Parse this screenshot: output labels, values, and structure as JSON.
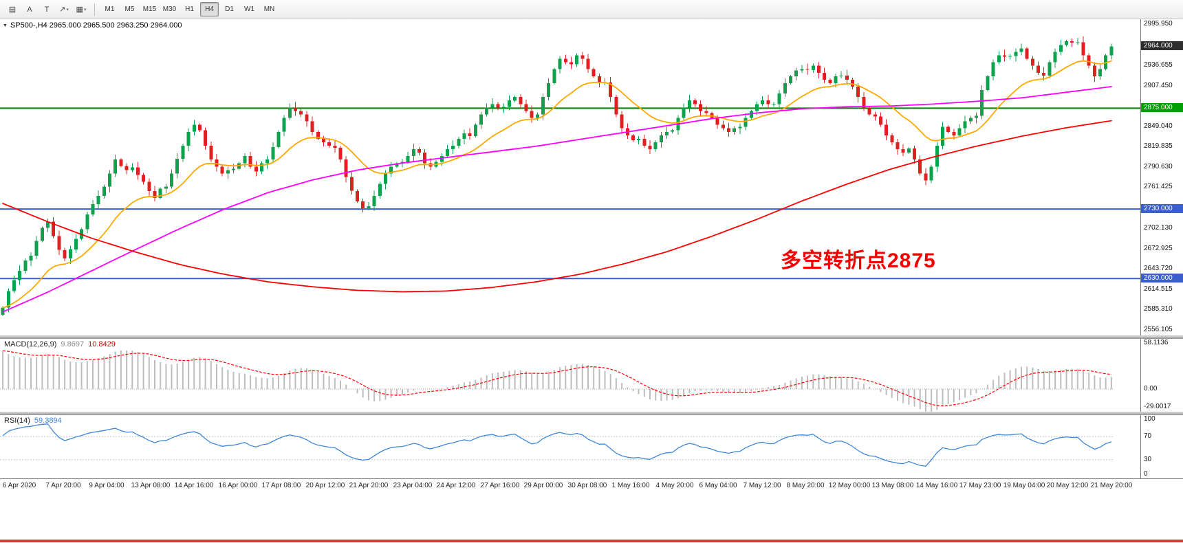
{
  "toolbar": {
    "tools": [
      {
        "name": "chart-objects-icon",
        "glyph": "▤",
        "caret": false
      },
      {
        "name": "text-label-icon",
        "glyph": "A",
        "caret": false
      },
      {
        "name": "text-frame-icon",
        "glyph": "T",
        "caret": false
      },
      {
        "name": "arrow-tool-icon",
        "glyph": "↗",
        "caret": true
      },
      {
        "name": "shapes-tool-icon",
        "glyph": "▦",
        "caret": true
      }
    ],
    "timeframes": [
      {
        "label": "M1",
        "active": false
      },
      {
        "label": "M5",
        "active": false
      },
      {
        "label": "M15",
        "active": false
      },
      {
        "label": "M30",
        "active": false
      },
      {
        "label": "H1",
        "active": false
      },
      {
        "label": "H4",
        "active": true
      },
      {
        "label": "D1",
        "active": false
      },
      {
        "label": "W1",
        "active": false
      },
      {
        "label": "MN",
        "active": false
      }
    ]
  },
  "chart": {
    "symbol_line": {
      "collapse_icon": "▼",
      "text": "SP500-,H4 2965.000 2965.500 2963.250 2964.000"
    },
    "annotation": {
      "text": "多空转折点2875",
      "color": "#FF0000"
    },
    "price_axis": {
      "ticks": [
        {
          "label": "2995.950",
          "value": 2995.95
        },
        {
          "label": "2936.655",
          "value": 2936.655
        },
        {
          "label": "2907.450",
          "value": 2907.45
        },
        {
          "label": "2849.040",
          "value": 2849.04
        },
        {
          "label": "2819.835",
          "value": 2819.835
        },
        {
          "label": "2790.630",
          "value": 2790.63
        },
        {
          "label": "2761.425",
          "value": 2761.425
        },
        {
          "label": "2702.130",
          "value": 2702.13
        },
        {
          "label": "2672.925",
          "value": 2672.925
        },
        {
          "label": "2643.720",
          "value": 2643.72
        },
        {
          "label": "2614.515",
          "value": 2614.515
        },
        {
          "label": "2585.310",
          "value": 2585.31
        },
        {
          "label": "2556.105",
          "value": 2556.105
        }
      ],
      "boxes": [
        {
          "label": "2964.000",
          "value": 2964.0,
          "bg": "#2e2e2e"
        },
        {
          "label": "2875.000",
          "value": 2875.0,
          "bg": "#00a000"
        },
        {
          "label": "2730.000",
          "value": 2730.0,
          "bg": "#3a5fcd"
        },
        {
          "label": "2630.000",
          "value": 2630.0,
          "bg": "#3a5fcd"
        }
      ]
    },
    "time_axis": [
      "6 Apr 2020",
      "7 Apr 20:00",
      "9 Apr 04:00",
      "13 Apr 08:00",
      "14 Apr 16:00",
      "16 Apr 00:00",
      "17 Apr 08:00",
      "20 Apr 12:00",
      "21 Apr 20:00",
      "23 Apr 04:00",
      "24 Apr 12:00",
      "27 Apr 16:00",
      "29 Apr 00:00",
      "30 Apr 08:00",
      "1 May 16:00",
      "4 May 20:00",
      "6 May 04:00",
      "7 May 12:00",
      "8 May 20:00",
      "12 May 00:00",
      "13 May 08:00",
      "14 May 16:00",
      "17 May 23:00",
      "19 May 04:00",
      "20 May 12:00",
      "21 May 20:00"
    ]
  },
  "chart_data": {
    "type": "candlestick",
    "symbol": "SP500-",
    "timeframe": "H4",
    "current_ohlc": {
      "open": 2965.0,
      "high": 2965.5,
      "low": 2963.25,
      "close": 2964.0
    },
    "price_scale": {
      "top": 2995.95,
      "bottom": 2556.105,
      "tick_step": 29.205
    },
    "up_color": "#0fa24e",
    "down_color": "#e02020",
    "first_open": 2578,
    "closes": [
      2588,
      2612,
      2628,
      2641,
      2656,
      2663,
      2684,
      2703,
      2712,
      2691,
      2671,
      2659,
      2672,
      2687,
      2701,
      2722,
      2737,
      2749,
      2762,
      2781,
      2801,
      2792,
      2786,
      2790,
      2779,
      2769,
      2756,
      2746,
      2759,
      2762,
      2781,
      2802,
      2821,
      2841,
      2851,
      2843,
      2821,
      2801,
      2791,
      2781,
      2786,
      2788,
      2796,
      2806,
      2791,
      2784,
      2796,
      2801,
      2819,
      2841,
      2861,
      2876,
      2871,
      2866,
      2856,
      2841,
      2831,
      2826,
      2821,
      2818,
      2801,
      2776,
      2756,
      2741,
      2731,
      2734,
      2749,
      2766,
      2781,
      2791,
      2796,
      2798,
      2806,
      2816,
      2811,
      2796,
      2791,
      2798,
      2806,
      2816,
      2821,
      2831,
      2839,
      2835,
      2851,
      2866,
      2876,
      2881,
      2876,
      2877,
      2886,
      2891,
      2881,
      2871,
      2861,
      2866,
      2891,
      2911,
      2931,
      2946,
      2941,
      2938,
      2951,
      2946,
      2931,
      2921,
      2911,
      2912,
      2891,
      2866,
      2846,
      2836,
      2829,
      2831,
      2821,
      2816,
      2826,
      2836,
      2841,
      2843,
      2861,
      2876,
      2886,
      2881,
      2871,
      2868,
      2861,
      2851,
      2846,
      2841,
      2846,
      2848,
      2861,
      2871,
      2881,
      2886,
      2881,
      2881,
      2896,
      2911,
      2921,
      2929,
      2931,
      2930,
      2936,
      2926,
      2916,
      2911,
      2921,
      2922,
      2916,
      2906,
      2891,
      2876,
      2866,
      2863,
      2851,
      2836,
      2826,
      2816,
      2811,
      2817,
      2801,
      2781,
      2771,
      2791,
      2821,
      2848,
      2841,
      2836,
      2846,
      2856,
      2861,
      2864,
      2901,
      2921,
      2941,
      2951,
      2949,
      2950,
      2956,
      2961,
      2946,
      2936,
      2926,
      2922,
      2941,
      2956,
      2966,
      2971,
      2969,
      2970,
      2951,
      2936,
      2921,
      2931,
      2951,
      2964
    ],
    "hlines": [
      {
        "price": 2875.0,
        "color": "#008000",
        "label": "2875.000"
      },
      {
        "price": 2730.0,
        "color": "#3a5fcd",
        "label": "2730.000"
      },
      {
        "price": 2630.0,
        "color": "#3a5fcd",
        "label": "2630.000"
      }
    ],
    "moving_averages": [
      {
        "name": "ma-fast",
        "color": "#ffa800",
        "type": "ema",
        "period": 16
      },
      {
        "name": "ma-mid",
        "color": "#ff00ff",
        "type": "waypoints",
        "points": [
          [
            0,
            2582
          ],
          [
            0.04,
            2610
          ],
          [
            0.08,
            2641
          ],
          [
            0.12,
            2672
          ],
          [
            0.16,
            2702
          ],
          [
            0.2,
            2730
          ],
          [
            0.24,
            2754
          ],
          [
            0.28,
            2772
          ],
          [
            0.32,
            2786
          ],
          [
            0.36,
            2796
          ],
          [
            0.4,
            2804
          ],
          [
            0.44,
            2812
          ],
          [
            0.48,
            2820
          ],
          [
            0.52,
            2830
          ],
          [
            0.56,
            2840
          ],
          [
            0.6,
            2850
          ],
          [
            0.64,
            2860
          ],
          [
            0.68,
            2868
          ],
          [
            0.72,
            2874
          ],
          [
            0.76,
            2877
          ],
          [
            0.8,
            2878
          ],
          [
            0.84,
            2881
          ],
          [
            0.88,
            2885
          ],
          [
            0.92,
            2890
          ],
          [
            0.96,
            2898
          ],
          [
            1,
            2906
          ]
        ]
      },
      {
        "name": "ma-slow",
        "color": "#ff0000",
        "type": "waypoints",
        "points": [
          [
            0,
            2738
          ],
          [
            0.04,
            2712
          ],
          [
            0.08,
            2688
          ],
          [
            0.12,
            2668
          ],
          [
            0.16,
            2650
          ],
          [
            0.2,
            2636
          ],
          [
            0.24,
            2625
          ],
          [
            0.28,
            2618
          ],
          [
            0.32,
            2613
          ],
          [
            0.36,
            2611
          ],
          [
            0.4,
            2612
          ],
          [
            0.44,
            2617
          ],
          [
            0.48,
            2625
          ],
          [
            0.52,
            2636
          ],
          [
            0.56,
            2651
          ],
          [
            0.6,
            2669
          ],
          [
            0.64,
            2691
          ],
          [
            0.68,
            2715
          ],
          [
            0.72,
            2741
          ],
          [
            0.76,
            2765
          ],
          [
            0.8,
            2787
          ],
          [
            0.84,
            2805
          ],
          [
            0.88,
            2821
          ],
          [
            0.92,
            2835
          ],
          [
            0.96,
            2847
          ],
          [
            1,
            2857
          ]
        ]
      }
    ],
    "macd": {
      "label": "MACD(12,26,9)",
      "value_main": "9.8697",
      "value_signal": "10.8429",
      "fast": 12,
      "slow": 26,
      "signal": 9,
      "hist_color": "#bdbdbd",
      "signal_color": "#ff0000",
      "axis": [
        {
          "label": "58.1136",
          "value": 58.1136
        },
        {
          "label": "0.00",
          "value": 0
        },
        {
          "label": "-29.0017",
          "value": -29.0017
        }
      ]
    },
    "rsi": {
      "label": "RSI(14)",
      "value": "59.3894",
      "period": 14,
      "color": "#3e86d8",
      "levels": [
        70,
        30
      ],
      "axis": [
        {
          "label": "100",
          "value": 100
        },
        {
          "label": "70",
          "value": 70
        },
        {
          "label": "30",
          "value": 30
        },
        {
          "label": "0",
          "value": 0
        }
      ]
    }
  }
}
